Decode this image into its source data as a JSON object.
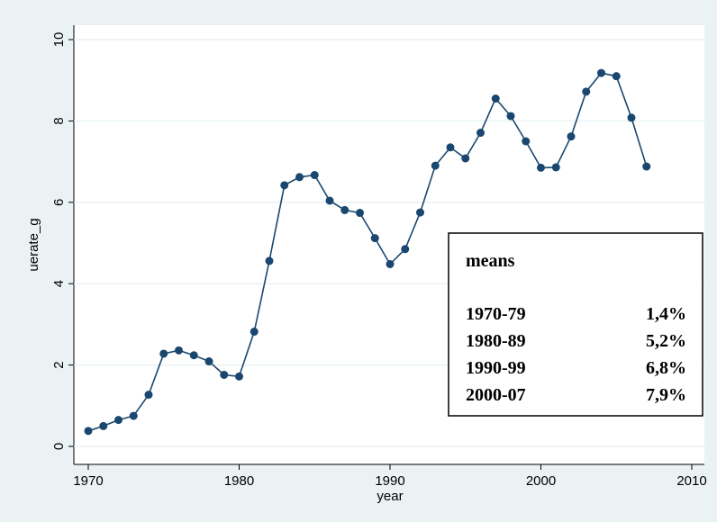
{
  "chart_data": {
    "type": "line",
    "x_label": "year",
    "y_label": "uerate_g",
    "x": [
      1970,
      1971,
      1972,
      1973,
      1974,
      1975,
      1976,
      1977,
      1978,
      1979,
      1980,
      1981,
      1982,
      1983,
      1984,
      1985,
      1986,
      1987,
      1988,
      1989,
      1990,
      1991,
      1992,
      1993,
      1994,
      1995,
      1996,
      1997,
      1998,
      1999,
      2000,
      2001,
      2002,
      2003,
      2004,
      2005,
      2006,
      2007
    ],
    "values": [
      0.38,
      0.5,
      0.65,
      0.75,
      1.27,
      2.28,
      2.36,
      2.24,
      2.09,
      1.76,
      1.72,
      2.82,
      4.56,
      6.42,
      6.62,
      6.67,
      6.04,
      5.81,
      5.74,
      5.12,
      4.48,
      4.85,
      5.75,
      6.9,
      7.35,
      7.08,
      7.71,
      8.55,
      8.12,
      7.5,
      6.85,
      6.86,
      7.62,
      8.72,
      9.18,
      9.1,
      8.08,
      6.88
    ],
    "color": "#1a476f",
    "xlim": [
      1970,
      2010
    ],
    "xticks": [
      1970,
      1980,
      1990,
      2000,
      2010
    ],
    "ylim": [
      0,
      10
    ],
    "yticks": [
      0,
      2,
      4,
      6,
      8,
      10
    ],
    "grid": true,
    "annotation": {
      "title": "means",
      "rows": [
        [
          "1970-79",
          "1,4%"
        ],
        [
          "1980-89",
          "5,2%"
        ],
        [
          "1990-99",
          "6,8%"
        ],
        [
          "2000-07",
          "7,9%"
        ]
      ]
    }
  }
}
